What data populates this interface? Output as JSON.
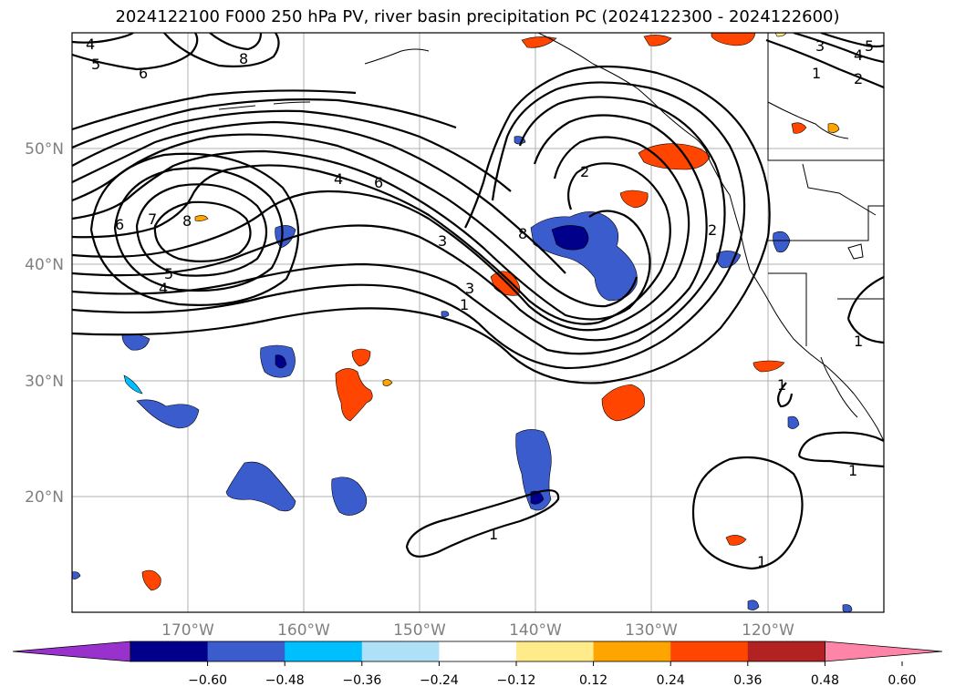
{
  "title": "2024122100 F000 250 hPa PV, river basin precipitation PC (2024122300 - 2024122600)",
  "lat_labels": [
    "50°N",
    "40°N",
    "30°N",
    "20°N"
  ],
  "lon_labels": [
    "170°W",
    "160°W",
    "150°W",
    "140°W",
    "130°W",
    "120°W"
  ],
  "colorbar": {
    "ticks": [
      "−0.60",
      "−0.48",
      "−0.36",
      "−0.24",
      "−0.12",
      "0.12",
      "0.24",
      "0.36",
      "0.48",
      "0.60"
    ],
    "colors": [
      "#9932cc",
      "#00008b",
      "#3a5ccc",
      "#00bfff",
      "#aee0f7",
      "#ffffff",
      "#ffeb8a",
      "#ffa500",
      "#ff4500",
      "#b22222",
      "#ff85a8"
    ]
  },
  "contour_labels": {
    "c1": "1",
    "c2": "2",
    "c3": "3",
    "c4": "4",
    "c5": "5",
    "c6": "6",
    "c7": "7",
    "c8": "8"
  },
  "map": {
    "projection": "PlateCarree",
    "lon_range": [
      "180°W",
      "110°W"
    ],
    "lat_range": [
      "10°N",
      "60°N"
    ],
    "gridlines": true
  }
}
